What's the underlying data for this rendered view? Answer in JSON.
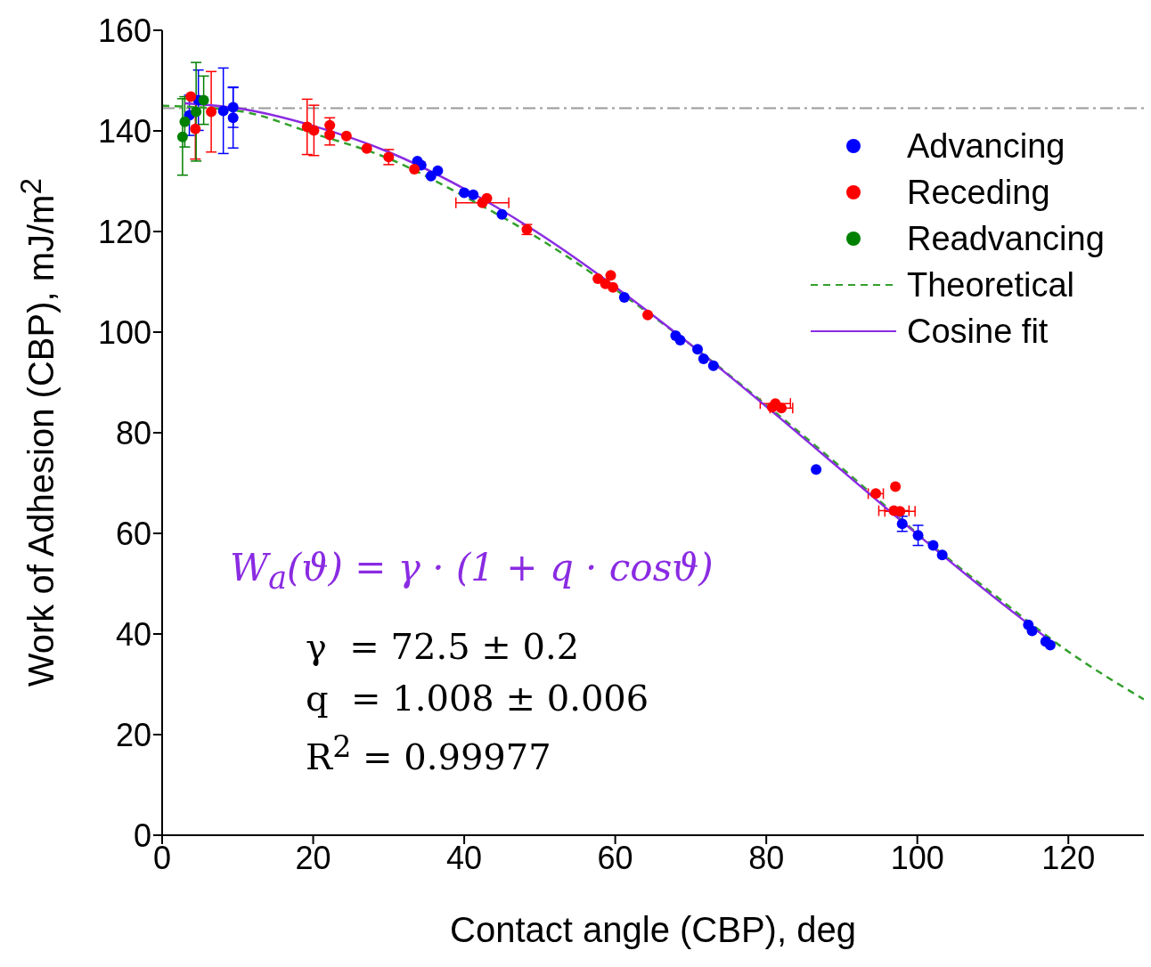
{
  "chart_data": {
    "type": "scatter",
    "xlabel": "Contact angle (CBP), deg",
    "ylabel": "Work of Adhesion (CBP), mJ/m$^{2}$",
    "xlim": [
      0,
      130
    ],
    "xticks": [
      0,
      20,
      40,
      60,
      80,
      100,
      120
    ],
    "ylim": [
      0,
      160
    ],
    "yticks": [
      0,
      20,
      40,
      60,
      80,
      100,
      120,
      140,
      160
    ],
    "grid": false,
    "legend": "top right",
    "marker": "circle",
    "series": [
      {
        "name": "Advancing",
        "color": "#0000ff",
        "x": [
          3.6,
          4.8,
          8.1,
          9.4,
          9.4,
          33.8,
          34.3,
          35.6,
          36.5,
          40,
          41.2,
          45,
          61.2,
          68,
          68.6,
          70.9,
          71.7,
          73,
          86.6,
          98,
          100.1,
          102.1,
          103.3,
          114.7,
          115.2,
          117,
          117.6
        ],
        "values": [
          143.1,
          146.1,
          144,
          144.7,
          142.6,
          134,
          133.2,
          131,
          132.1,
          127.7,
          127.3,
          123.4,
          106.9,
          99.3,
          98.4,
          96.6,
          94.7,
          93.3,
          72.7,
          61.9,
          59.6,
          57.6,
          55.7,
          41.8,
          40.6,
          38.5,
          37.8
        ],
        "errors": [
          4,
          6,
          8.5,
          4,
          6,
          null,
          null,
          null,
          null,
          null,
          null,
          null,
          null,
          null,
          null,
          null,
          null,
          null,
          null,
          1.5,
          2,
          null,
          null,
          null,
          null,
          null,
          null
        ]
      },
      {
        "name": "Receding",
        "color": "#ff0000",
        "x": [
          3.8,
          4.4,
          6.5,
          19.2,
          20.1,
          22.2,
          22.2,
          24.4,
          27.1,
          30,
          33.4,
          42.4,
          43,
          48.3,
          57.7,
          59.4,
          58.7,
          59.7,
          64.3,
          80.8,
          82,
          81.2,
          94.5,
          97.1,
          96.9,
          97.7
        ],
        "values": [
          146.8,
          140.4,
          143.8,
          140.8,
          140.1,
          141.1,
          139.2,
          139,
          136.5,
          134.8,
          132.4,
          125.7,
          126.6,
          120.4,
          110.6,
          111.3,
          109.6,
          108.9,
          103.4,
          85.1,
          84.9,
          85.8,
          67.9,
          69.3,
          64.5,
          64.4
        ],
        "errors": [
          null,
          6,
          8,
          5.5,
          5,
          1.5,
          2,
          null,
          null,
          1.5,
          null,
          null,
          null,
          1,
          null,
          null,
          null,
          null,
          null,
          null,
          null,
          null,
          null,
          null,
          null,
          null
        ],
        "xerrors": [
          null,
          null,
          null,
          null,
          null,
          null,
          null,
          null,
          null,
          null,
          null,
          3.5,
          null,
          null,
          null,
          null,
          null,
          null,
          null,
          null,
          1.5,
          2,
          1,
          null,
          2,
          2
        ]
      },
      {
        "name": "Readvancing",
        "color": "#008000",
        "x": [
          2.7,
          3,
          4.5,
          5.5
        ],
        "values": [
          138.8,
          141.8,
          143.8,
          146.1
        ],
        "errors": [
          7.6,
          5,
          9.8,
          4.8
        ]
      },
      {
        "name": "Theoretical",
        "type": "line",
        "color": "#33a02c",
        "line_style": "dashed",
        "marker": "none",
        "x": [
          0,
          10,
          20,
          30,
          40,
          50,
          60,
          70,
          80,
          90,
          100,
          110,
          120,
          130
        ],
        "values": [
          145,
          144,
          139.5,
          134.5,
          127,
          118.5,
          108.5,
          97.5,
          85.5,
          73,
          60,
          48,
          36.5,
          27
        ]
      },
      {
        "name": "Cosine fit",
        "type": "line",
        "color": "#8a2be2",
        "line_style": "solid",
        "marker": "none",
        "x": [
          3,
          10,
          20,
          30,
          40,
          50,
          60,
          70,
          80,
          90,
          100,
          110,
          118
        ],
        "values": [
          145.5,
          144.5,
          141,
          135.8,
          128.5,
          119.5,
          109,
          97.5,
          85.2,
          72.5,
          59.8,
          47.5,
          38.2
        ]
      }
    ],
    "ref_lines": [
      {
        "axis": "y",
        "value": 144.5,
        "color": "#999999",
        "line_style": "dashed"
      }
    ],
    "annotations": [
      "W$_{a}$(ϑ) = γ · (1 + q · cosϑ)",
      "γ  = 72.5 ± 0.2",
      "q  = 1.008 ± 0.006",
      "R$^{2}$ = 0.99977"
    ]
  }
}
